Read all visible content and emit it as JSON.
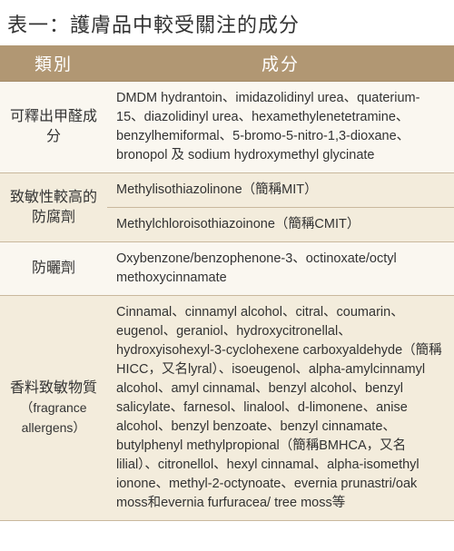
{
  "title": "表一：護膚品中較受關注的成分",
  "headers": {
    "category": "類別",
    "ingredient": "成分"
  },
  "rows": {
    "r0": {
      "category": "可釋出甲醛成分",
      "ingredient": "DMDM hydrantoin、imidazolidinyl urea、quaterium-15、diazolidinyl urea、hexamethylenetetramine、benzylhemiformal、5-bromo-5-nitro-1,3-dioxane、bronopol 及 sodium hydroxymethyl glycinate"
    },
    "r1": {
      "category": "致敏性較高的防腐劑",
      "ingredient_a": "Methylisothiazolinone（簡稱MIT）",
      "ingredient_b": "Methylchloroisothiazoinone（簡稱CMIT）"
    },
    "r2": {
      "category": "防曬劑",
      "ingredient": "Oxybenzone/benzophenone-3、octinoxate/octyl methoxycinnamate"
    },
    "r3": {
      "category_line1": "香料致敏物質",
      "category_line2": "（fragrance allergens）",
      "ingredient": "Cinnamal、cinnamyl alcohol、citral、coumarin、eugenol、geraniol、hydroxycitronellal、hydroxyisohexyl-3-cyclohexene carboxyaldehyde（簡稱HICC，又名lyral）、isoeugenol、alpha-amylcinnamyl alcohol、amyl cinnamal、benzyl alcohol、benzyl salicylate、farnesol、linalool、d-limonene、anise alcohol、benzyl benzoate、benzyl cinnamate、butylphenyl methylpropional（簡稱BMHCA，又名lilial）、citronellol、hexyl cinnamal、alpha-isomethyl ionone、methyl-2-octynoate、evernia prunastri/oak moss和evernia furfuracea/ tree moss等"
    }
  },
  "colors": {
    "header_bg": "#b19773",
    "header_text": "#ffffff",
    "row_light": "#faf7f0",
    "row_dark": "#f3ecdc",
    "border": "#c9b89d",
    "text": "#333333"
  }
}
